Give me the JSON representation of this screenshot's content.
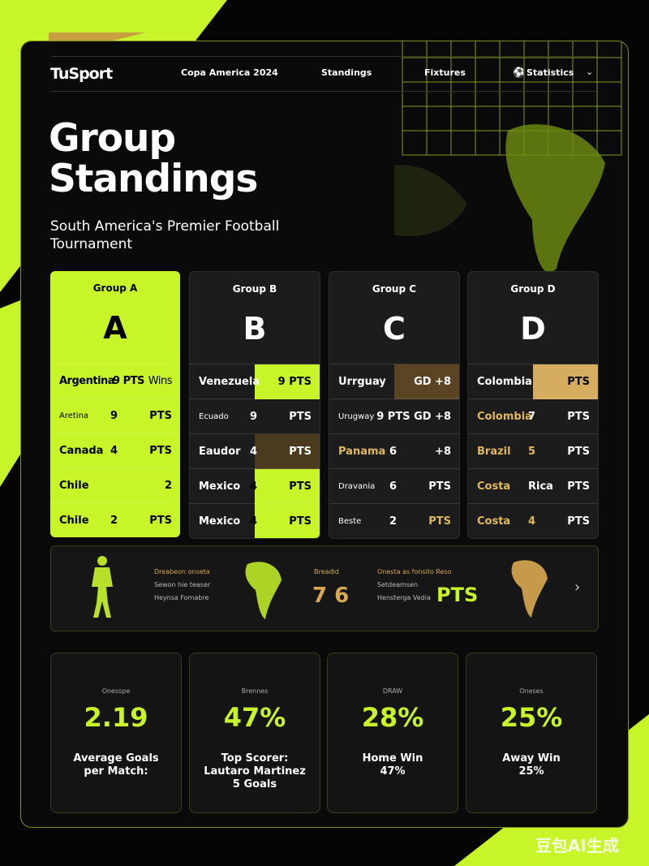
{
  "brand": "TuSport",
  "nav": [
    "Copa America 2024",
    "Standings",
    "Fixtures",
    "Statistics"
  ],
  "hero": {
    "title": "Group Standings",
    "subtitle": "South America's Premier Football Tournament"
  },
  "groups": [
    {
      "label": "Group A",
      "letter": "A",
      "rows": [
        [
          "Argentina",
          "9 PTS",
          "Wins"
        ],
        [
          "Aretina",
          "9",
          "PTS"
        ],
        [
          "Canada",
          "4",
          "PTS"
        ],
        [
          "Chile",
          "2"
        ],
        [
          "Chile",
          "2",
          "PTS"
        ]
      ]
    },
    {
      "label": "Group B",
      "letter": "B",
      "rows": [
        [
          "Venezuela",
          "9 PTS"
        ],
        [
          "Ecuado",
          "9",
          "PTS"
        ],
        [
          "Eaudor",
          "4",
          "PTS"
        ],
        [
          "Mexico",
          "4",
          "PTS"
        ],
        [
          "Mexico",
          "4",
          "PTS"
        ]
      ]
    },
    {
      "label": "Group C",
      "letter": "C",
      "rows": [
        [
          "Urrguay",
          "GD +8"
        ],
        [
          "Urugway",
          "9 PTS GD +8"
        ],
        [
          "Panama",
          "6",
          "+8"
        ],
        [
          "Dravania",
          "6",
          "PTS"
        ],
        [
          "Beste",
          "2",
          "PTS"
        ]
      ]
    },
    {
      "label": "Group D",
      "letter": "D",
      "rows": [
        [
          "Colombia",
          "PTS"
        ],
        [
          "Colombia",
          "7",
          "PTS"
        ],
        [
          "Brazil",
          "5",
          "PTS"
        ],
        [
          "Costa",
          "Rica",
          "PTS"
        ],
        [
          "Costa",
          "4",
          "PTS"
        ]
      ]
    }
  ],
  "banner": {
    "left": [
      "Dreabeon onseta",
      "Sewon hie teaser",
      "Heynsa Fomabre"
    ],
    "mid_label": "Breadid",
    "mid_value": "7 6",
    "right": [
      "Onesta as fonsito Reso",
      "Setdeamsen",
      "Hensterga Vedia"
    ],
    "right_value": "PTS"
  },
  "stats": [
    {
      "label": "Onesspe",
      "value": "2.19",
      "caption": [
        "Average Goals",
        "per Match:"
      ]
    },
    {
      "label": "Brennes",
      "value": "47%",
      "caption": [
        "Top Scorer:",
        "Lautaro Martinez",
        "5 Goals"
      ]
    },
    {
      "label": "DRAW",
      "value": "28%",
      "caption": [
        "Home Win",
        "47%"
      ]
    },
    {
      "label": "Oneses",
      "value": "25%",
      "caption": [
        "Away Win",
        "25%"
      ]
    }
  ],
  "watermark": "豆包AI生成"
}
